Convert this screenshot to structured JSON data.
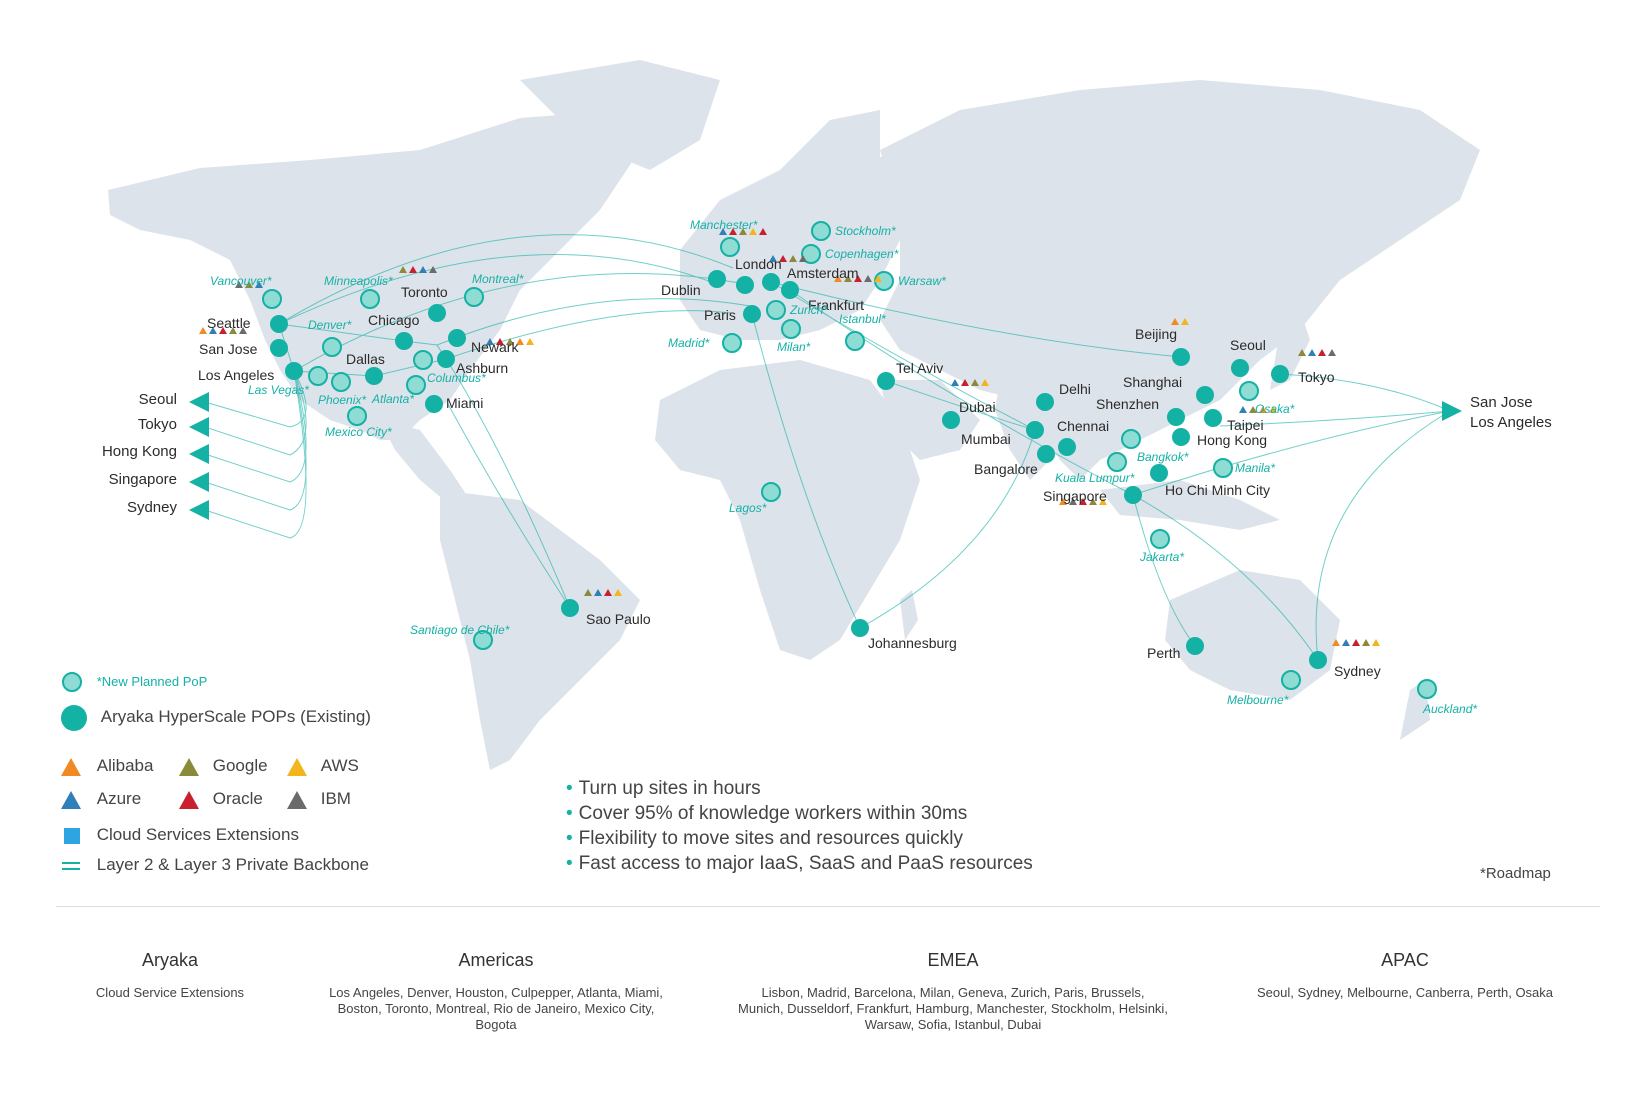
{
  "colors": {
    "teal": "#14b1a5",
    "tealLight": "#8fdcd4",
    "land": "#dde3ea",
    "alibaba": "#f08a24",
    "google": "#8a8a3a",
    "aws": "#f2b51d",
    "azure": "#2f7fb8",
    "oracle": "#c8202f",
    "ibm": "#6b6b6b",
    "cloudExt": "#2ea4e0"
  },
  "existing_pops": [
    {
      "name": "Seattle"
    },
    {
      "name": "San Jose"
    },
    {
      "name": "Los Angeles"
    },
    {
      "name": "Dallas"
    },
    {
      "name": "Chicago"
    },
    {
      "name": "Toronto"
    },
    {
      "name": "Newark"
    },
    {
      "name": "Ashburn"
    },
    {
      "name": "Miami"
    },
    {
      "name": "Sao Paulo"
    },
    {
      "name": "London"
    },
    {
      "name": "Dublin"
    },
    {
      "name": "Amsterdam"
    },
    {
      "name": "Paris"
    },
    {
      "name": "Frankfurt"
    },
    {
      "name": "Tel Aviv"
    },
    {
      "name": "Dubai"
    },
    {
      "name": "Mumbai"
    },
    {
      "name": "Delhi"
    },
    {
      "name": "Chennai"
    },
    {
      "name": "Bangalore"
    },
    {
      "name": "Singapore"
    },
    {
      "name": "Ho Chi Minh City"
    },
    {
      "name": "Hong Kong"
    },
    {
      "name": "Shenzhen"
    },
    {
      "name": "Shanghai"
    },
    {
      "name": "Taipei"
    },
    {
      "name": "Beijing"
    },
    {
      "name": "Seoul"
    },
    {
      "name": "Tokyo"
    },
    {
      "name": "Sydney"
    },
    {
      "name": "Perth"
    },
    {
      "name": "Johannesburg"
    }
  ],
  "planned_pops": [
    {
      "name": "Vancouver*"
    },
    {
      "name": "Minneapolis*"
    },
    {
      "name": "Montreal*"
    },
    {
      "name": "Denver*"
    },
    {
      "name": "Las Vegas*"
    },
    {
      "name": "Phoenix*"
    },
    {
      "name": "Atlanta*"
    },
    {
      "name": "Columbus*"
    },
    {
      "name": "Mexico City*"
    },
    {
      "name": "Santiago de Chile*"
    },
    {
      "name": "Manchester*"
    },
    {
      "name": "Stockholm*"
    },
    {
      "name": "Copenhagen*"
    },
    {
      "name": "Warsaw*"
    },
    {
      "name": "Zurich*"
    },
    {
      "name": "Istanbul*"
    },
    {
      "name": "Madrid*"
    },
    {
      "name": "Milan*"
    },
    {
      "name": "Lagos*"
    },
    {
      "name": "Osaka*"
    },
    {
      "name": "Bangkok*"
    },
    {
      "name": "Manila*"
    },
    {
      "name": "Kuala Lumpur*"
    },
    {
      "name": "Jakarta*"
    },
    {
      "name": "Melbourne*"
    },
    {
      "name": "Auckland*"
    }
  ],
  "left_exits": [
    "Seoul",
    "Tokyo",
    "Hong Kong",
    "Singapore",
    "Sydney"
  ],
  "right_exit": [
    "San Jose",
    "Los Angeles"
  ],
  "legend": {
    "planned": "*New Planned PoP",
    "existing": "Aryaka HyperScale POPs (Existing)",
    "alibaba": "Alibaba",
    "google": "Google",
    "aws": "AWS",
    "azure": "Azure",
    "oracle": "Oracle",
    "ibm": "IBM",
    "cloud_ext": "Cloud Services Extensions",
    "backbone": "Layer 2 & Layer 3 Private Backbone"
  },
  "bullets": [
    "Turn up sites in hours",
    "Cover 95% of knowledge workers within 30ms",
    "Flexibility to move sites and resources quickly",
    "Fast access to major IaaS, SaaS and PaaS resources"
  ],
  "roadmap_note": "*Roadmap",
  "columns": [
    {
      "title": "Aryaka",
      "body": "Cloud Service Extensions"
    },
    {
      "title": "Americas",
      "body": "Los Angeles, Denver, Houston, Culpepper, Atlanta, Miami, Boston, Toronto, Montreal, Rio de Janeiro, Mexico City, Bogota"
    },
    {
      "title": "EMEA",
      "body": "Lisbon, Madrid, Barcelona, Milan, Geneva, Zurich, Paris, Brussels, Munich, Dusseldorf, Frankfurt, Hamburg, Manchester, Stockholm, Helsinki, Warsaw, Sofia, Istanbul, Dubai"
    },
    {
      "title": "APAC",
      "body": "Seoul, Sydney, Melbourne, Canberra, Perth, Osaka"
    }
  ]
}
